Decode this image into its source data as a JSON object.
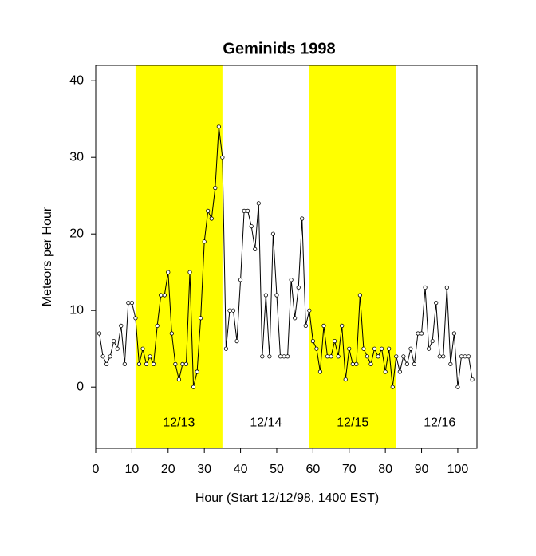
{
  "chart_data": {
    "type": "line",
    "title": "Geminids 1998",
    "xlabel": "Hour (Start 12/12/98, 1400 EST)",
    "ylabel": "Meteors per Hour",
    "xlim": [
      0,
      105.3
    ],
    "ylim": [
      -8,
      42
    ],
    "xticks": [
      0,
      10,
      20,
      30,
      40,
      50,
      60,
      70,
      80,
      90,
      100
    ],
    "yticks": [
      0,
      10,
      20,
      30,
      40
    ],
    "days": [
      {
        "label": "12/13",
        "start": 11,
        "end": 35,
        "shaded": true,
        "color": "#ffff00"
      },
      {
        "label": "12/14",
        "start": 35,
        "end": 59,
        "shaded": false
      },
      {
        "label": "12/15",
        "start": 59,
        "end": 83,
        "shaded": true,
        "color": "#ffff00"
      },
      {
        "label": "12/16",
        "start": 83,
        "end": 107,
        "shaded": false
      }
    ],
    "label_y": -4.7,
    "series": [
      {
        "color": "#000000",
        "x": [
          1,
          2,
          3,
          4,
          5,
          6,
          7,
          8,
          9,
          10,
          11,
          12,
          13,
          14,
          15,
          16,
          17,
          18,
          19,
          20,
          21,
          22,
          23,
          24,
          25,
          26,
          27,
          28,
          29,
          30,
          31,
          32,
          33,
          34,
          35,
          36,
          37,
          38,
          39,
          40,
          41,
          42,
          43,
          44,
          45,
          46,
          47,
          48,
          49,
          50,
          51,
          52,
          53,
          54,
          55,
          56,
          57,
          58,
          59,
          60,
          61,
          62,
          63,
          64,
          65,
          66,
          67,
          68,
          69,
          70,
          71,
          72,
          73,
          74,
          75,
          76,
          77,
          78,
          79,
          80,
          81,
          82,
          83,
          84,
          85,
          86,
          87,
          88,
          89,
          90,
          91,
          92,
          93,
          94,
          95,
          96,
          97,
          98,
          99,
          100,
          101,
          102,
          103,
          104
        ],
        "values": [
          7,
          4,
          3,
          4,
          6,
          5,
          8,
          3,
          11,
          11,
          9,
          3,
          5,
          3,
          4,
          3,
          8,
          12,
          12,
          15,
          7,
          3,
          1,
          3,
          3,
          15,
          0,
          2,
          9,
          19,
          23,
          22,
          26,
          34,
          30,
          5,
          10,
          10,
          6,
          14,
          23,
          23,
          21,
          18,
          24,
          4,
          12,
          4,
          20,
          12,
          4,
          4,
          4,
          14,
          9,
          13,
          22,
          8,
          10,
          6,
          5,
          2,
          8,
          4,
          4,
          6,
          4,
          8,
          1,
          5,
          3,
          3,
          12,
          5,
          4,
          3,
          5,
          4,
          5,
          2,
          5,
          0,
          4,
          2,
          4,
          3,
          5,
          3,
          7,
          7,
          13,
          5,
          6,
          11,
          4,
          4,
          13,
          3,
          7,
          0,
          4,
          4,
          4,
          1
        ]
      }
    ]
  }
}
